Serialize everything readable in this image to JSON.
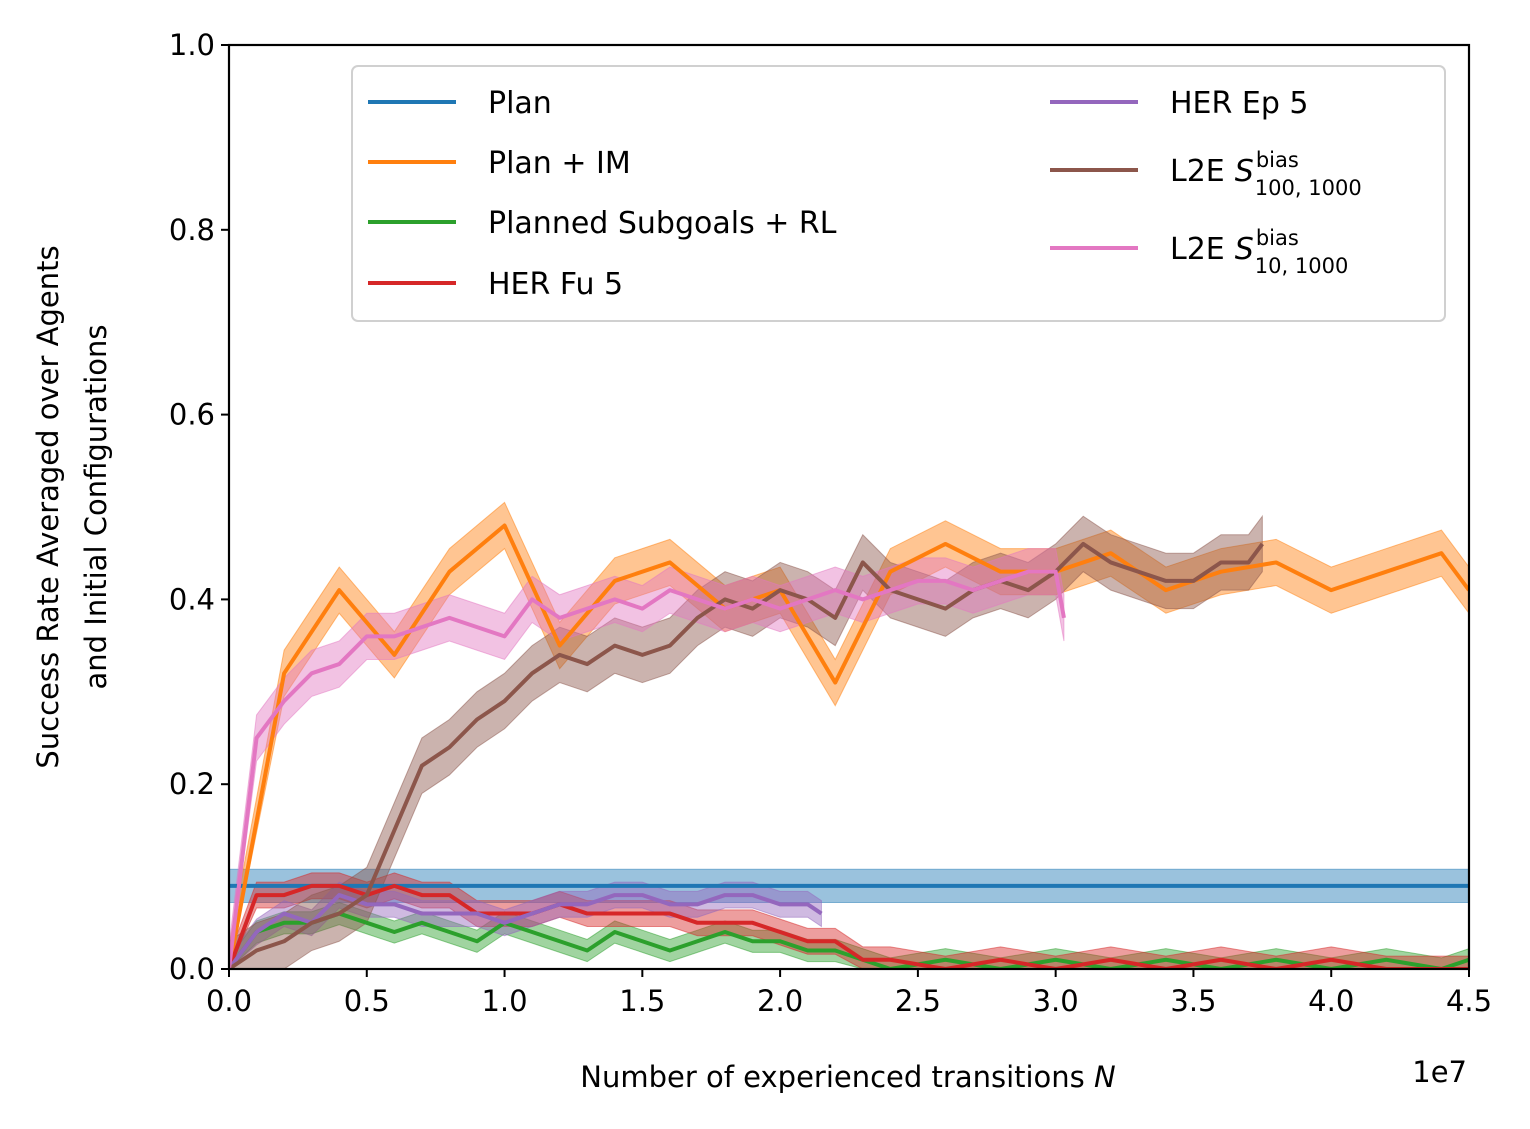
{
  "chart_data": {
    "type": "line",
    "title": "",
    "xlabel": "Number of experienced transitions",
    "xlabel_var": "N",
    "x_offset_label": "1e7",
    "ylabel_line1": "Success Rate Averaged over Agents",
    "ylabel_line2": "and Initial Configurations",
    "xlim": [
      0,
      4.5
    ],
    "ylim": [
      0,
      1.0
    ],
    "x_unit_multiplier": 10000000,
    "xticks": [
      0.0,
      0.5,
      1.0,
      1.5,
      2.0,
      2.5,
      3.0,
      3.5,
      4.0,
      4.5
    ],
    "xtick_labels": [
      "0.0",
      "0.5",
      "1.0",
      "1.5",
      "2.0",
      "2.5",
      "3.0",
      "3.5",
      "4.0",
      "4.5"
    ],
    "yticks": [
      0.0,
      0.2,
      0.4,
      0.6,
      0.8,
      1.0
    ],
    "ytick_labels": [
      "0.0",
      "0.2",
      "0.4",
      "0.6",
      "0.8",
      "1.0"
    ],
    "grid": false,
    "legend_position": "top-right",
    "series": [
      {
        "name": "Plan",
        "legend_base": "Plan",
        "color": "#1f77b4",
        "x": [
          0,
          4.5
        ],
        "y": [
          0.09,
          0.09
        ],
        "band": 0.018
      },
      {
        "name": "Plan + IM",
        "legend_base": "Plan + IM",
        "color": "#ff7f0e",
        "x": [
          0.0,
          0.2,
          0.4,
          0.6,
          0.8,
          1.0,
          1.2,
          1.4,
          1.6,
          1.8,
          2.0,
          2.2,
          2.4,
          2.6,
          2.8,
          3.0,
          3.2,
          3.4,
          3.6,
          3.8,
          4.0,
          4.2,
          4.4,
          4.5
        ],
        "y": [
          0.0,
          0.32,
          0.41,
          0.34,
          0.43,
          0.48,
          0.35,
          0.42,
          0.44,
          0.39,
          0.41,
          0.31,
          0.43,
          0.46,
          0.43,
          0.43,
          0.45,
          0.41,
          0.43,
          0.44,
          0.41,
          0.43,
          0.45,
          0.41
        ],
        "band": 0.025
      },
      {
        "name": "Planned Subgoals + RL",
        "legend_base": "Planned Subgoals + RL",
        "color": "#2ca02c",
        "x": [
          0.0,
          0.1,
          0.2,
          0.3,
          0.4,
          0.5,
          0.6,
          0.7,
          0.8,
          0.9,
          1.0,
          1.1,
          1.2,
          1.3,
          1.4,
          1.5,
          1.6,
          1.7,
          1.8,
          1.9,
          2.0,
          2.1,
          2.2,
          2.3,
          2.4,
          2.6,
          2.8,
          3.0,
          3.2,
          3.4,
          3.6,
          3.8,
          4.0,
          4.2,
          4.4,
          4.5
        ],
        "y": [
          0.0,
          0.04,
          0.05,
          0.05,
          0.06,
          0.05,
          0.04,
          0.05,
          0.04,
          0.03,
          0.05,
          0.04,
          0.03,
          0.02,
          0.04,
          0.03,
          0.02,
          0.03,
          0.04,
          0.03,
          0.03,
          0.02,
          0.02,
          0.01,
          0.0,
          0.01,
          0.0,
          0.01,
          0.0,
          0.01,
          0.0,
          0.01,
          0.0,
          0.01,
          0.0,
          0.01
        ],
        "band": 0.012
      },
      {
        "name": "HER Fu 5",
        "legend_base": "HER Fu 5",
        "color": "#d62728",
        "x": [
          0.0,
          0.1,
          0.2,
          0.3,
          0.4,
          0.5,
          0.6,
          0.7,
          0.8,
          0.9,
          1.0,
          1.1,
          1.2,
          1.3,
          1.4,
          1.5,
          1.6,
          1.7,
          1.8,
          1.9,
          2.0,
          2.1,
          2.2,
          2.3,
          2.4,
          2.6,
          2.8,
          3.0,
          3.2,
          3.4,
          3.6,
          3.8,
          4.0,
          4.2,
          4.4,
          4.5
        ],
        "y": [
          0.0,
          0.08,
          0.08,
          0.09,
          0.09,
          0.08,
          0.09,
          0.08,
          0.08,
          0.06,
          0.06,
          0.06,
          0.07,
          0.06,
          0.06,
          0.06,
          0.06,
          0.05,
          0.05,
          0.05,
          0.04,
          0.03,
          0.03,
          0.01,
          0.01,
          0.0,
          0.01,
          0.0,
          0.01,
          0.0,
          0.01,
          0.0,
          0.01,
          0.0,
          0.0,
          0.0
        ],
        "band": 0.014
      },
      {
        "name": "HER Ep 5",
        "legend_base": "HER Ep 5",
        "color": "#9467bd",
        "x": [
          0.0,
          0.1,
          0.2,
          0.3,
          0.4,
          0.5,
          0.6,
          0.7,
          0.8,
          0.9,
          1.0,
          1.1,
          1.2,
          1.3,
          1.4,
          1.5,
          1.6,
          1.7,
          1.8,
          1.9,
          2.0,
          2.1,
          2.15
        ],
        "y": [
          0.0,
          0.04,
          0.06,
          0.05,
          0.08,
          0.07,
          0.07,
          0.06,
          0.06,
          0.06,
          0.05,
          0.06,
          0.07,
          0.07,
          0.08,
          0.08,
          0.07,
          0.07,
          0.08,
          0.08,
          0.07,
          0.07,
          0.06
        ],
        "band": 0.014
      },
      {
        "name": "L2E S^bias_{100,1000}",
        "legend_base": "L2E",
        "legend_sym": "S",
        "legend_sup": "bias",
        "legend_sub": "100, 1000",
        "color": "#8c564b",
        "x": [
          0.0,
          0.1,
          0.2,
          0.3,
          0.4,
          0.5,
          0.6,
          0.7,
          0.8,
          0.9,
          1.0,
          1.1,
          1.2,
          1.3,
          1.4,
          1.5,
          1.6,
          1.7,
          1.8,
          1.9,
          2.0,
          2.1,
          2.2,
          2.3,
          2.4,
          2.5,
          2.6,
          2.7,
          2.8,
          2.9,
          3.0,
          3.1,
          3.2,
          3.3,
          3.4,
          3.5,
          3.6,
          3.7,
          3.75
        ],
        "y": [
          0.0,
          0.02,
          0.03,
          0.05,
          0.06,
          0.08,
          0.15,
          0.22,
          0.24,
          0.27,
          0.29,
          0.32,
          0.34,
          0.33,
          0.35,
          0.34,
          0.35,
          0.38,
          0.4,
          0.39,
          0.41,
          0.4,
          0.38,
          0.44,
          0.41,
          0.4,
          0.39,
          0.41,
          0.42,
          0.41,
          0.43,
          0.46,
          0.44,
          0.43,
          0.42,
          0.42,
          0.44,
          0.44,
          0.46
        ],
        "band": 0.03
      },
      {
        "name": "L2E S^bias_{10,1000}",
        "legend_base": "L2E",
        "legend_sym": "S",
        "legend_sup": "bias",
        "legend_sub": "10, 1000",
        "color": "#e377c2",
        "x": [
          0.0,
          0.1,
          0.2,
          0.3,
          0.4,
          0.5,
          0.6,
          0.7,
          0.8,
          0.9,
          1.0,
          1.1,
          1.2,
          1.3,
          1.4,
          1.5,
          1.6,
          1.7,
          1.8,
          1.9,
          2.0,
          2.1,
          2.2,
          2.3,
          2.4,
          2.5,
          2.6,
          2.7,
          2.8,
          2.9,
          3.0,
          3.03
        ],
        "y": [
          0.0,
          0.25,
          0.29,
          0.32,
          0.33,
          0.36,
          0.36,
          0.37,
          0.38,
          0.37,
          0.36,
          0.4,
          0.38,
          0.39,
          0.4,
          0.39,
          0.41,
          0.4,
          0.39,
          0.4,
          0.39,
          0.4,
          0.41,
          0.4,
          0.41,
          0.42,
          0.42,
          0.41,
          0.42,
          0.43,
          0.43,
          0.38
        ],
        "band": 0.025
      }
    ]
  }
}
